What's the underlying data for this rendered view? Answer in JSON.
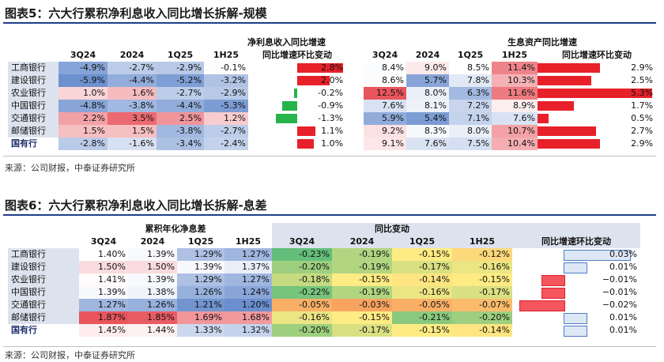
{
  "fig5": {
    "title": "图表5：六大行累积净利息收入同比增长拆解-规模",
    "source": "来源：公司财报，中泰证券研究所",
    "left_group": "净利息收入同比增速",
    "right_group": "生息资产同比增速",
    "cols": [
      "3Q24",
      "2024",
      "1Q25",
      "1H25"
    ],
    "chg_label": "同比增速环比变动",
    "rows": [
      {
        "bank": "工商银行",
        "nii": [
          "-4.9%",
          "-2.7%",
          "-2.9%",
          "-0.1%"
        ],
        "nii_chg": "2.8%",
        "nii_chg_v": 2.8,
        "ia": [
          "8.4%",
          "9.0%",
          "8.5%",
          "11.4%"
        ],
        "ia_chg": "2.9%",
        "ia_chg_v": 2.9
      },
      {
        "bank": "建设银行",
        "nii": [
          "-5.9%",
          "-4.4%",
          "-5.2%",
          "-3.2%"
        ],
        "nii_chg": "2.0%",
        "nii_chg_v": 2.0,
        "ia": [
          "8.6%",
          "5.7%",
          "7.8%",
          "10.3%"
        ],
        "ia_chg": "2.5%",
        "ia_chg_v": 2.5
      },
      {
        "bank": "农业银行",
        "nii": [
          "1.0%",
          "1.6%",
          "-2.7%",
          "-2.9%"
        ],
        "nii_chg": "-0.2%",
        "nii_chg_v": -0.2,
        "ia": [
          "12.5%",
          "8.0%",
          "6.3%",
          "11.6%"
        ],
        "ia_chg": "5.3%",
        "ia_chg_v": 5.3
      },
      {
        "bank": "中国银行",
        "nii": [
          "-4.8%",
          "-3.8%",
          "-4.4%",
          "-5.3%"
        ],
        "nii_chg": "-0.9%",
        "nii_chg_v": -0.9,
        "ia": [
          "7.6%",
          "8.1%",
          "7.2%",
          "8.9%"
        ],
        "ia_chg": "1.7%",
        "ia_chg_v": 1.7
      },
      {
        "bank": "交通银行",
        "nii": [
          "2.2%",
          "3.5%",
          "2.5%",
          "1.2%"
        ],
        "nii_chg": "-1.3%",
        "nii_chg_v": -1.3,
        "ia": [
          "5.9%",
          "5.4%",
          "7.1%",
          "7.6%"
        ],
        "ia_chg": "0.5%",
        "ia_chg_v": 0.5
      },
      {
        "bank": "邮储银行",
        "nii": [
          "1.5%",
          "1.5%",
          "-3.8%",
          "-2.7%"
        ],
        "nii_chg": "1.1%",
        "nii_chg_v": 1.1,
        "ia": [
          "9.2%",
          "8.3%",
          "8.0%",
          "10.7%"
        ],
        "ia_chg": "2.7%",
        "ia_chg_v": 2.7
      },
      {
        "bank": "国有行",
        "nii": [
          "-2.8%",
          "-1.6%",
          "-3.4%",
          "-2.4%"
        ],
        "nii_chg": "1.0%",
        "nii_chg_v": 1.0,
        "ia": [
          "9.1%",
          "7.6%",
          "7.5%",
          "10.4%"
        ],
        "ia_chg": "2.9%",
        "ia_chg_v": 2.9
      }
    ]
  },
  "fig6": {
    "title": "图表6：六大行累积净利息收入同比增长拆解-息差",
    "source": "来源：公司财报，中泰证券研究所",
    "left_group": "累积年化净息差",
    "right_group": "同比变动",
    "cols": [
      "3Q24",
      "2024",
      "1Q25",
      "1H25"
    ],
    "chg_label": "同比增速环比变动",
    "rows": [
      {
        "bank": "工商银行",
        "nim": [
          "1.40%",
          "1.39%",
          "1.29%",
          "1.27%"
        ],
        "yoy": [
          "-0.23%",
          "-0.19%",
          "-0.15%",
          "-0.12%"
        ],
        "chg": "0.03%",
        "chg_v": 0.03
      },
      {
        "bank": "建设银行",
        "nim": [
          "1.50%",
          "1.50%",
          "1.39%",
          "1.37%"
        ],
        "yoy": [
          "-0.20%",
          "-0.19%",
          "-0.17%",
          "-0.16%"
        ],
        "chg": "0.01%",
        "chg_v": 0.01
      },
      {
        "bank": "农业银行",
        "nim": [
          "1.41%",
          "1.39%",
          "1.29%",
          "1.27%"
        ],
        "yoy": [
          "-0.18%",
          "-0.15%",
          "-0.14%",
          "-0.15%"
        ],
        "chg": "−0.01%",
        "chg_v": -0.01
      },
      {
        "bank": "中国银行",
        "nim": [
          "1.39%",
          "1.38%",
          "1.26%",
          "1.24%"
        ],
        "yoy": [
          "-0.22%",
          "-0.19%",
          "-0.16%",
          "-0.17%"
        ],
        "chg": "−0.01%",
        "chg_v": -0.01
      },
      {
        "bank": "交通银行",
        "nim": [
          "1.27%",
          "1.26%",
          "1.21%",
          "1.20%"
        ],
        "yoy": [
          "-0.05%",
          "-0.03%",
          "-0.05%",
          "-0.07%"
        ],
        "chg": "−0.02%",
        "chg_v": -0.02
      },
      {
        "bank": "邮储银行",
        "nim": [
          "1.87%",
          "1.85%",
          "1.69%",
          "1.68%"
        ],
        "yoy": [
          "-0.16%",
          "-0.15%",
          "-0.21%",
          "-0.20%"
        ],
        "chg": "0.01%",
        "chg_v": 0.01
      },
      {
        "bank": "国有行",
        "nim": [
          "1.45%",
          "1.44%",
          "1.33%",
          "1.32%"
        ],
        "yoy": [
          "-0.20%",
          "-0.17%",
          "-0.15%",
          "-0.14%"
        ],
        "chg": "0.01%",
        "chg_v": 0.01
      }
    ]
  }
}
